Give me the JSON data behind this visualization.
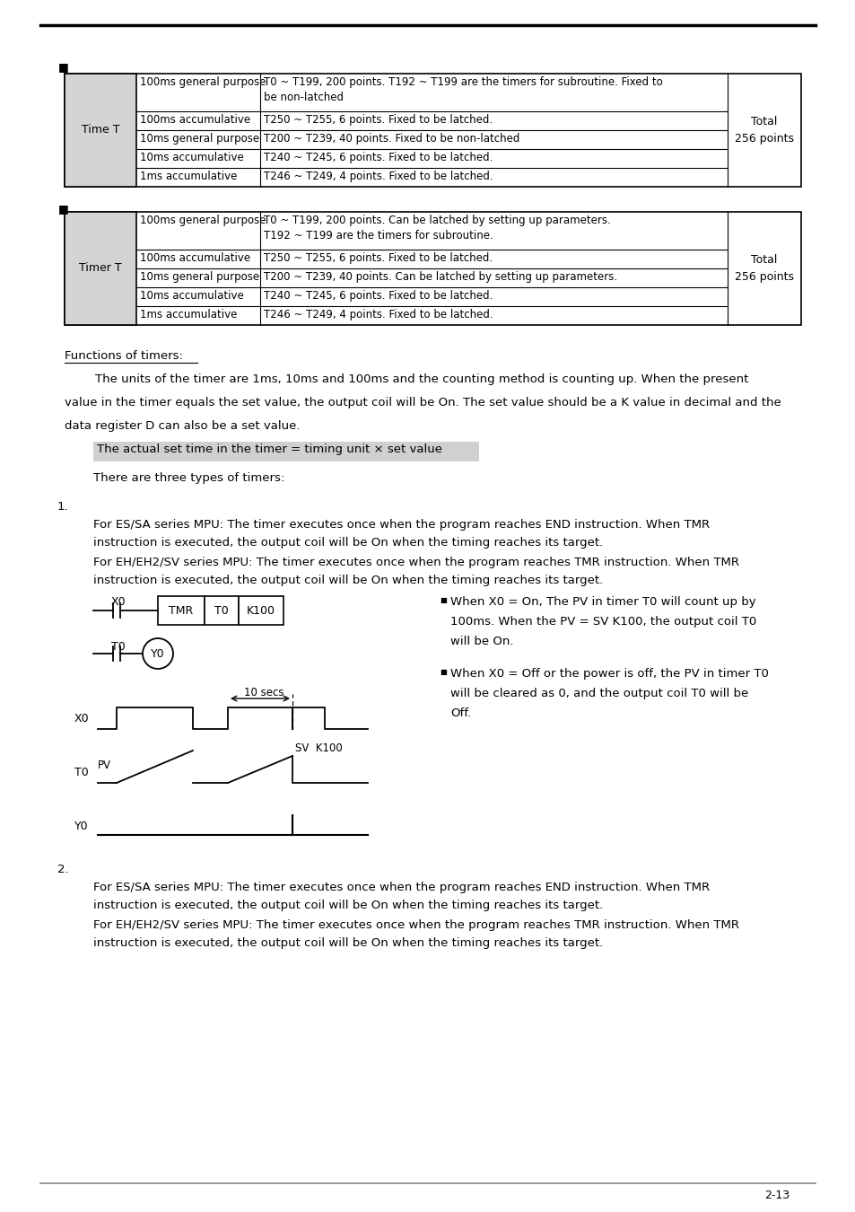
{
  "page_number": "2-13",
  "bg_color": "#ffffff",
  "table1_rows": [
    {
      "type": "100ms general purpose",
      "desc": "T0 ~ T199, 200 points. T192 ~ T199 are the timers for subroutine. Fixed to\nbe non-latched",
      "double": true
    },
    {
      "type": "100ms accumulative",
      "desc": "T250 ~ T255, 6 points. Fixed to be latched."
    },
    {
      "type": "10ms general purpose",
      "desc": "T200 ~ T239, 40 points. Fixed to be non-latched"
    },
    {
      "type": "10ms accumulative",
      "desc": "T240 ~ T245, 6 points. Fixed to be latched."
    },
    {
      "type": "1ms accumulative",
      "desc": "T246 ~ T249, 4 points. Fixed to be latched."
    }
  ],
  "table1_label": "Time T",
  "table2_rows": [
    {
      "type": "100ms general purpose",
      "desc": "T0 ~ T199, 200 points. Can be latched by setting up parameters.\nT192 ~ T199 are the timers for subroutine.",
      "double": true
    },
    {
      "type": "100ms accumulative",
      "desc": "T250 ~ T255, 6 points. Fixed to be latched."
    },
    {
      "type": "10ms general purpose",
      "desc": "T200 ~ T239, 40 points. Can be latched by setting up parameters."
    },
    {
      "type": "10ms accumulative",
      "desc": "T240 ~ T245, 6 points. Fixed to be latched."
    },
    {
      "type": "1ms accumulative",
      "desc": "T246 ~ T249, 4 points. Fixed to be latched."
    }
  ],
  "table2_label": "Timer T",
  "total_text": "Total\n256 points"
}
